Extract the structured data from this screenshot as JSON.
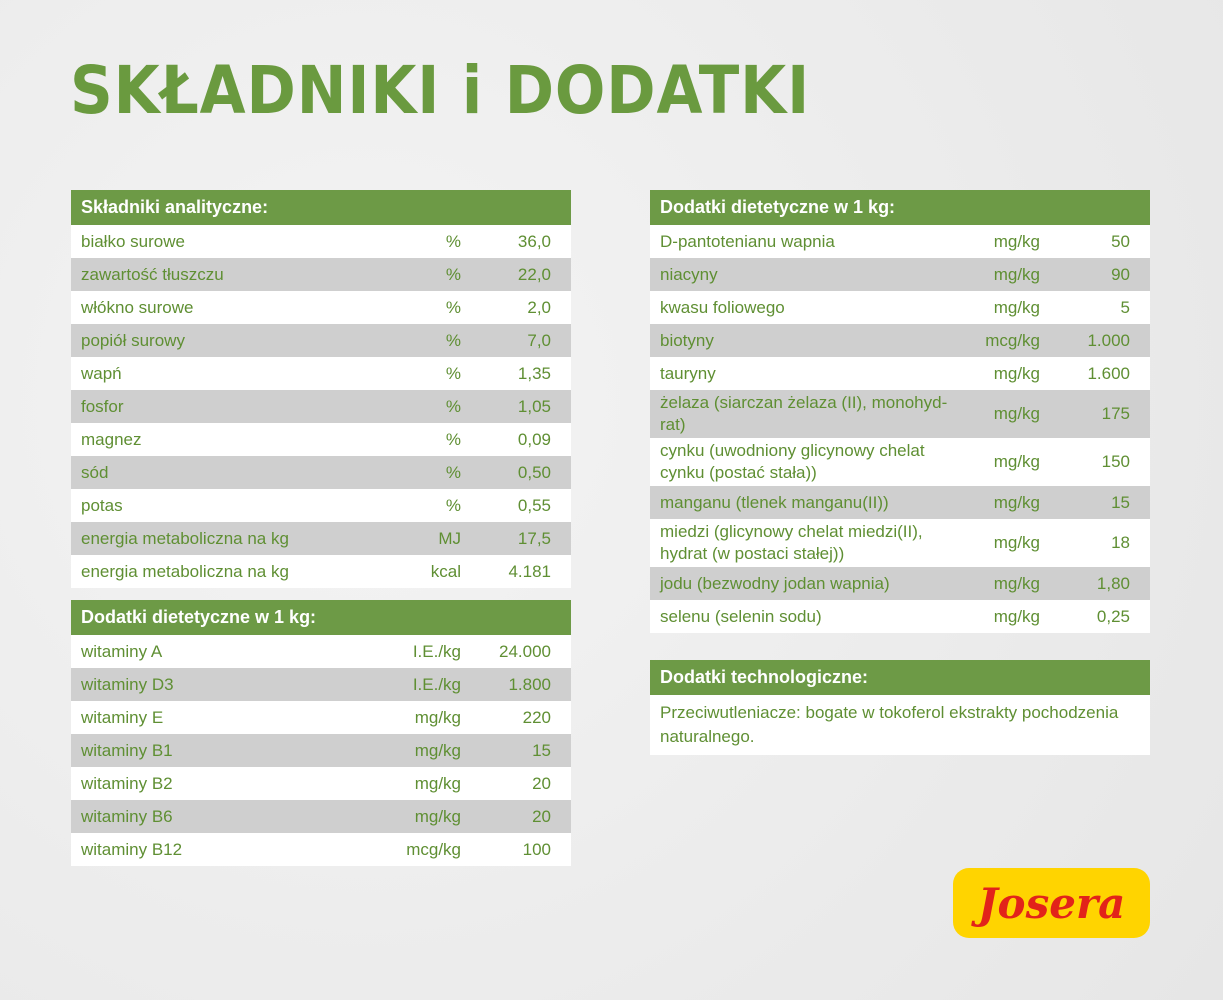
{
  "header": {
    "title": "SKŁADNIKI i DODATKI"
  },
  "tables": [
    {
      "title": "Składniki analityczne:",
      "rows": [
        [
          "białko surowe",
          "%",
          "36,0"
        ],
        [
          "zawartość tłuszczu",
          "%",
          "22,0"
        ],
        [
          "włókno surowe",
          "%",
          "2,0"
        ],
        [
          "popiół surowy",
          "%",
          "7,0"
        ],
        [
          "wapń",
          "%",
          "1,35"
        ],
        [
          "fosfor",
          "%",
          "1,05"
        ],
        [
          "magnez",
          "%",
          "0,09"
        ],
        [
          "sód",
          "%",
          "0,50"
        ],
        [
          "potas",
          "%",
          "0,55"
        ],
        [
          "energia metaboliczna na kg",
          "MJ",
          "17,5"
        ],
        [
          "energia metaboliczna na kg",
          "kcal",
          "4.181"
        ]
      ]
    },
    {
      "title": "Dodatki dietetyczne w 1 kg:",
      "rows": [
        [
          "witaminy A",
          "I.E./kg",
          "24.000"
        ],
        [
          "witaminy D3",
          "I.E./kg",
          "1.800"
        ],
        [
          "witaminy E",
          "mg/kg",
          "220"
        ],
        [
          "witaminy B1",
          "mg/kg",
          "15"
        ],
        [
          "witaminy B2",
          "mg/kg",
          "20"
        ],
        [
          "witaminy B6",
          "mg/kg",
          "20"
        ],
        [
          "witaminy B12",
          "mcg/kg",
          "100"
        ]
      ]
    },
    {
      "title": "Dodatki dietetyczne w 1 kg:",
      "rows": [
        [
          "D-pantotenianu wapnia",
          "mg/kg",
          "50"
        ],
        [
          "niacyny",
          "mg/kg",
          "90"
        ],
        [
          "kwasu foliowego",
          "mg/kg",
          "5"
        ],
        [
          "biotyny",
          "mcg/kg",
          "1.000"
        ],
        [
          "tauryny",
          "mg/kg",
          "1.600"
        ],
        [
          "żelaza (siarczan żelaza (II), monohyd-rat)",
          "mg/kg",
          "175"
        ],
        [
          "cynku (uwodniony glicynowy chelat cynku (postać stała))",
          "mg/kg",
          "150"
        ],
        [
          "manganu (tlenek manganu(II))",
          "mg/kg",
          "15"
        ],
        [
          "miedzi (glicynowy chelat miedzi(II), hydrat (w postaci stałej))",
          "mg/kg",
          "18"
        ],
        [
          "jodu (bezwodny jodan wapnia)",
          "mg/kg",
          "1,80"
        ],
        [
          "selenu (selenin sodu)",
          "mg/kg",
          "0,25"
        ]
      ]
    }
  ],
  "note_table": {
    "title": "Dodatki technologiczne:",
    "text": "Przeciwutleniacze: bogate w tokoferol ekstrakty pochodzenia naturalnego."
  },
  "logo": {
    "text": "Josera"
  }
}
